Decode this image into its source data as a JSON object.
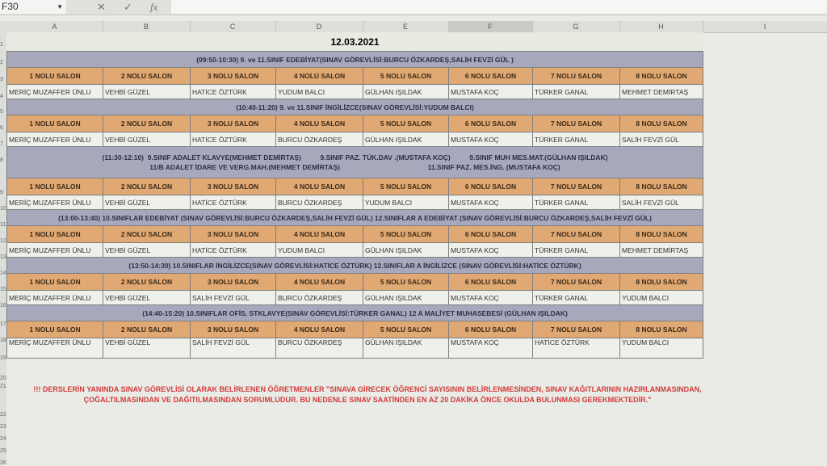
{
  "namebox": "F30",
  "formula_icons": [
    "cancel-icon",
    "confirm-icon",
    "fx-icon"
  ],
  "columns": [
    "A",
    "B",
    "C",
    "D",
    "E",
    "F",
    "G",
    "H",
    "I"
  ],
  "selected_column": "F",
  "row_numbers": [
    "1",
    "2",
    "3",
    "4",
    "5",
    "6",
    "7",
    "8",
    "9",
    "10",
    "11",
    "12",
    "13",
    "14",
    "15",
    "16",
    "17",
    "18",
    "19",
    "20",
    "21",
    "22",
    "23",
    "24",
    "25",
    "26"
  ],
  "date": "12.03.2021",
  "salons": [
    "1 NOLU SALON",
    "2 NOLU SALON",
    "3 NOLU SALON",
    "4 NOLU SALON",
    "5 NOLU SALON",
    "6 NOLU SALON",
    "7 NOLU SALON",
    "8 NOLU SALON"
  ],
  "sections": [
    {
      "title": "(09:50-10:30) 9. ve 11.SINIF EDEBİYAT(SINAV GÖREVLİSİ:BURCU ÖZKARDEŞ,SALİH FEVZİ GÜL )",
      "names": [
        "MERİÇ MUZAFFER ÜNLU",
        "VEHBİ GÜZEL",
        "HATİCE ÖZTÜRK",
        "YUDUM BALCI",
        "GÜLHAN IŞILDAK",
        "MUSTAFA KOÇ",
        "TÜRKER GANAL",
        "MEHMET DEMİRTAŞ"
      ]
    },
    {
      "title": "(10:40-11:20) 9. ve 11.SINIF İNGİLİZCE(SINAV GÖREVLİSİ:YUDUM BALCI)",
      "names": [
        "MERİÇ MUZAFFER ÜNLU",
        "VEHBİ GÜZEL",
        "HATİCE ÖZTÜRK",
        "BURCU ÖZKARDEŞ",
        "GÜLHAN IŞILDAK",
        "MUSTAFA KOÇ",
        "TÜRKER GANAL",
        "SALİH FEVZİ GÜL"
      ]
    },
    {
      "title": "(11:30-12:10)  9.SINIF ADALET KLAVYE(MEHMET DEMİRTAŞ)          9.SINIF PAZ. TÜK.DAV .(MUSTAFA KOÇ)          9.SINIF MUH MES.MAT.(GÜLHAN IŞILDAK)\n11/B ADALET İDARE VE VERG.MAH.(MEHMET DEMİRTAŞ)                                              11.SINIF PAZ. MES.İNG. (MUSTAFA KOÇ)",
      "names": [
        "MERİÇ MUZAFFER ÜNLU",
        "VEHBİ GÜZEL",
        "HATİCE ÖZTÜRK",
        "BURCU ÖZKARDEŞ",
        "YUDUM BALCI",
        "MUSTAFA KOÇ",
        "TÜRKER GANAL",
        "SALİH FEVZİ GÜL"
      ]
    },
    {
      "title": "(13:00-13:40) 10.SINIFLAR EDEBİYAT (SINAV GÖREVLİSİ:BURCU ÖZKARDEŞ,SALİH FEVZİ GÜL) 12.SINIFLAR A  EDEBİYAT (SINAV GÖREVLİSİ:BURCU ÖZKARDEŞ,SALİH FEVZİ GÜL)",
      "names": [
        "MERİÇ MUZAFFER ÜNLU",
        "VEHBİ GÜZEL",
        "HATİCE ÖZTÜRK",
        "YUDUM BALCI",
        "GÜLHAN IŞILDAK",
        "MUSTAFA KOÇ",
        "TÜRKER GANAL",
        "MEHMET DEMİRTAŞ"
      ]
    },
    {
      "title": "(13:50-14:30) 10.SINIFLAR İNGİLİZCE(SINAV GÖREVLİSİ:HATİCE ÖZTÜRK)          12.SINIFLAR A İNGİLİZCE (SINAV GÖREVLİSİ:HATİCE ÖZTÜRK)",
      "names": [
        "MERİÇ MUZAFFER ÜNLU",
        "VEHBİ GÜZEL",
        "SALİH FEVZİ GÜL",
        "BURCU ÖZKARDEŞ",
        "GÜLHAN IŞILDAK",
        "MUSTAFA KOÇ",
        "TÜRKER GANAL",
        "YUDUM BALCI"
      ]
    },
    {
      "title": "(14:40-15:20) 10.SINIFLAR OFİS, STKLAVYE(SINAV GÖREVLİSİ:TÜRKER GANAL)          12 A MALİYET MUHASEBESİ (GÜLHAN IŞILDAK)",
      "names": [
        "MERİÇ MUZAFFER ÜNLU",
        "VEHBİ GÜZEL",
        "SALİH FEVZİ GÜL",
        "BURCU ÖZKARDEŞ",
        "GÜLHAN IŞILDAK",
        "MUSTAFA KOÇ",
        "HATİCE ÖZTÜRK",
        "YUDUM BALCI"
      ]
    }
  ],
  "note": "!!! DERSLERİN YANINDA SINAV GÖREVLİSİ OLARAK BELİRLENEN ÖĞRETMENLER \"SINAVA GİRECEK ÖĞRENCİ SAYISININ BELİRLENMESİNDEN, SINAV KAĞITLARININ HAZIRLANMASINDAN, ÇOĞALTILMASINDAN VE DAĞITILMASINDAN SORUMLUDUR. BU NEDENLE SINAV SAATİNDEN EN AZ 20 DAKİKA ÖNCE OKULDA BULUNMASI GEREKMEKTEDİR.\""
}
